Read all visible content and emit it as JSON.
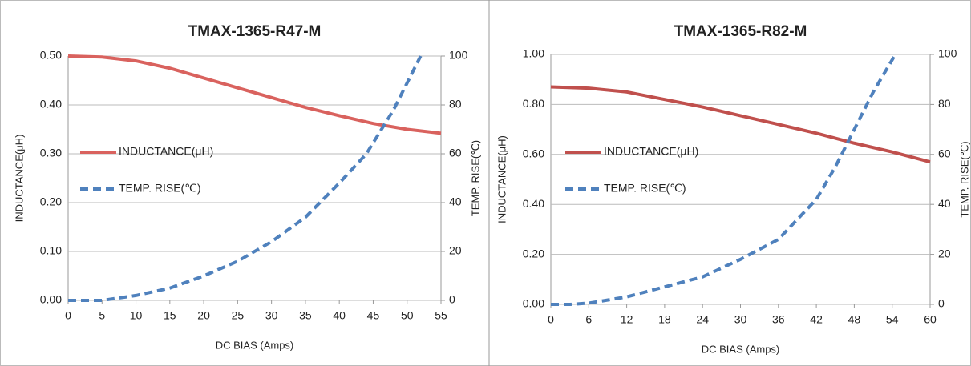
{
  "chart_data": [
    {
      "type": "line",
      "title": "TMAX-1365-R47-M",
      "y_label": "INDUCTANCE(μH)",
      "y2_label": "TEMP. RISE(℃)",
      "x_label": "DC BIAS  (Amps)",
      "xlim": [
        0,
        55
      ],
      "xticks": [
        0,
        5,
        10,
        15,
        20,
        25,
        30,
        35,
        40,
        45,
        50,
        55
      ],
      "ylim": [
        0,
        0.5
      ],
      "yticks": [
        {
          "value": 0,
          "label": "0.00"
        },
        {
          "value": 0.1,
          "label": "0.10"
        },
        {
          "value": 0.2,
          "label": "0.20"
        },
        {
          "value": 0.3,
          "label": "0.30"
        },
        {
          "value": 0.4,
          "label": "0.40"
        },
        {
          "value": 0.5,
          "label": "0.50"
        }
      ],
      "y2lim": [
        0,
        100
      ],
      "y2ticks": [
        0,
        20,
        40,
        60,
        80,
        100
      ],
      "series": [
        {
          "name": "INDUCTANCE(μH)",
          "color": "#d9625e",
          "dashed": false,
          "x": [
            0,
            5,
            10,
            15,
            20,
            25,
            30,
            35,
            40,
            45,
            50,
            55
          ],
          "values": [
            0.5,
            0.498,
            0.49,
            0.475,
            0.455,
            0.435,
            0.415,
            0.395,
            0.378,
            0.362,
            0.35,
            0.342
          ]
        },
        {
          "name": "TEMP. RISE(℃)",
          "color": "#4f81bd",
          "dashed": true,
          "axis": "y2",
          "x": [
            0,
            5,
            10,
            15,
            20,
            25,
            30,
            35,
            40,
            44,
            48,
            52
          ],
          "values": [
            0,
            0,
            2,
            5,
            10,
            16,
            24,
            34,
            48,
            60,
            78,
            100
          ]
        }
      ]
    },
    {
      "type": "line",
      "title": "TMAX-1365-R82-M",
      "y_label": "INDUCTANCE(μH)",
      "y2_label": "TEMP. RISE(℃)",
      "x_label": "DC BIAS  (Amps)",
      "xlim": [
        0,
        60
      ],
      "xticks": [
        0,
        6,
        12,
        18,
        24,
        30,
        36,
        42,
        48,
        54,
        60
      ],
      "ylim": [
        0,
        1
      ],
      "yticks": [
        {
          "value": 0,
          "label": "0.00"
        },
        {
          "value": 0.2,
          "label": "0.20"
        },
        {
          "value": 0.4,
          "label": "0.40"
        },
        {
          "value": 0.6,
          "label": "0.60"
        },
        {
          "value": 0.8,
          "label": "0.80"
        },
        {
          "value": 1,
          "label": "1.00"
        }
      ],
      "y2lim": [
        0,
        100
      ],
      "y2ticks": [
        0,
        20,
        40,
        60,
        80,
        100
      ],
      "series": [
        {
          "name": "INDUCTANCE(μH)",
          "color": "#c0504d",
          "dashed": false,
          "x": [
            0,
            6,
            12,
            18,
            24,
            30,
            36,
            42,
            48,
            54,
            60
          ],
          "values": [
            0.87,
            0.865,
            0.85,
            0.82,
            0.79,
            0.755,
            0.72,
            0.685,
            0.645,
            0.61,
            0.57
          ]
        },
        {
          "name": "TEMP. RISE(℃)",
          "color": "#4f81bd",
          "dashed": true,
          "axis": "y2",
          "x": [
            0,
            3,
            6,
            12,
            18,
            24,
            30,
            36,
            42,
            45,
            48,
            51,
            54.5
          ],
          "values": [
            0,
            0,
            0.5,
            3,
            7,
            11,
            18,
            26,
            42,
            55,
            70,
            85,
            100
          ]
        }
      ]
    }
  ]
}
